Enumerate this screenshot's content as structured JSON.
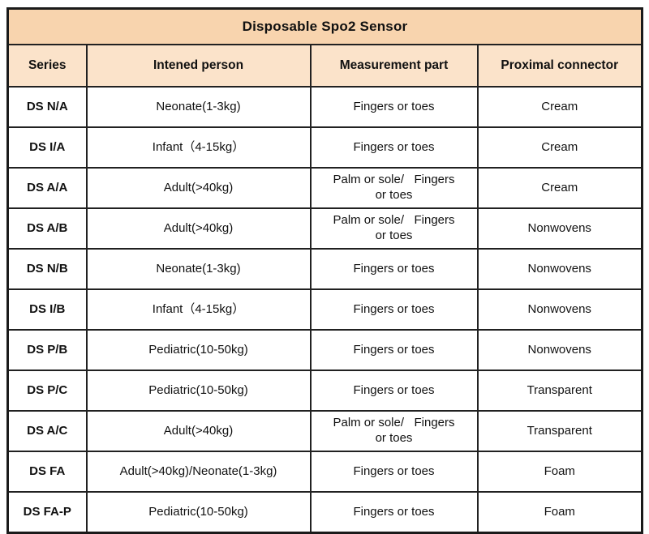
{
  "chart_data": {
    "type": "table",
    "title": "Disposable Spo2 Sensor",
    "columns": [
      "Series",
      "Intened person",
      "Measurement part",
      "Proximal connector"
    ],
    "rows": [
      [
        "DS N/A",
        "Neonate(1-3kg)",
        "Fingers or toes",
        "Cream"
      ],
      [
        "DS I/A",
        "Infant（4-15kg）",
        "Fingers or toes",
        "Cream"
      ],
      [
        "DS A/A",
        "Adult(>40kg)",
        "Palm or sole/   Fingers\nor toes",
        "Cream"
      ],
      [
        "DS A/B",
        "Adult(>40kg)",
        "Palm or sole/   Fingers\nor toes",
        "Nonwovens"
      ],
      [
        "DS N/B",
        "Neonate(1-3kg)",
        "Fingers or toes",
        "Nonwovens"
      ],
      [
        "DS I/B",
        "Infant（4-15kg）",
        "Fingers or toes",
        "Nonwovens"
      ],
      [
        "DS P/B",
        "Pediatric(10-50kg)",
        "Fingers or toes",
        "Nonwovens"
      ],
      [
        "DS P/C",
        "Pediatric(10-50kg)",
        "Fingers or toes",
        "Transparent"
      ],
      [
        "DS A/C",
        "Adult(>40kg)",
        "Palm or sole/   Fingers\nor toes",
        "Transparent"
      ],
      [
        "DS FA",
        "Adult(>40kg)/Neonate(1-3kg)",
        "Fingers or toes",
        "Foam"
      ],
      [
        "DS FA-P",
        "Pediatric(10-50kg)",
        "Fingers or toes",
        "Foam"
      ]
    ],
    "layout": {
      "grid": true,
      "title_position": "top-merged-row",
      "column_alignment": "center"
    },
    "colors": {
      "title_bg": "#f8d4ae",
      "header_bg": "#fbe3ca",
      "cell_bg": "#ffffff",
      "border": "#212121",
      "text": "#111111"
    }
  }
}
